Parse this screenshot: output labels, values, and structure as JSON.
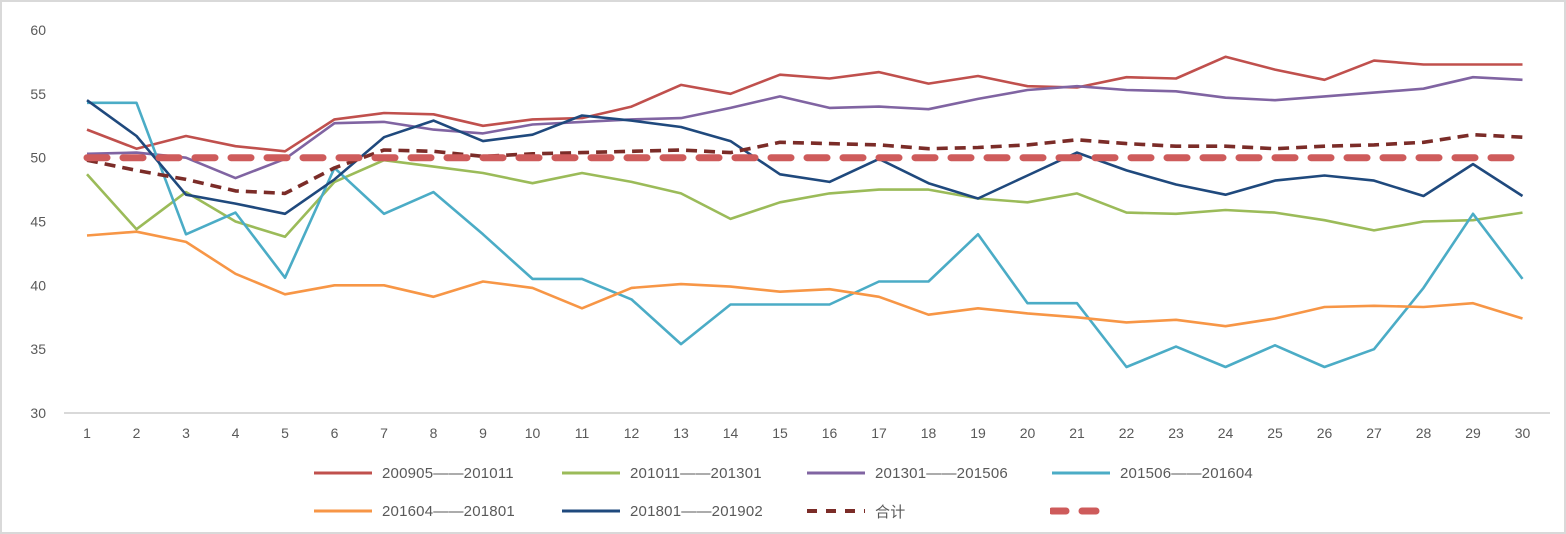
{
  "chart_data": {
    "type": "line",
    "title": "",
    "xlabel": "",
    "ylabel": "",
    "ylim": [
      30,
      60
    ],
    "yticks": [
      60,
      55,
      50,
      45,
      40,
      35,
      30
    ],
    "x": [
      1,
      2,
      3,
      4,
      5,
      6,
      7,
      8,
      9,
      10,
      11,
      12,
      13,
      14,
      15,
      16,
      17,
      18,
      19,
      20,
      21,
      22,
      23,
      24,
      25,
      26,
      27,
      28,
      29,
      30
    ],
    "grid": false,
    "legend_position": "bottom",
    "series": [
      {
        "name": "200905——201011",
        "color": "#C0504D",
        "line": "solid",
        "values": [
          52.2,
          50.7,
          51.7,
          50.9,
          50.5,
          53.0,
          53.5,
          53.4,
          52.5,
          53.0,
          53.1,
          54.0,
          55.7,
          55.0,
          56.5,
          56.2,
          56.7,
          55.8,
          56.4,
          55.6,
          55.5,
          56.3,
          56.2,
          57.9,
          56.9,
          56.1,
          57.6,
          57.3,
          57.3,
          57.3
        ]
      },
      {
        "name": "201011——201301",
        "color": "#9BBB59",
        "line": "solid",
        "values": [
          48.7,
          44.4,
          47.3,
          45.0,
          43.8,
          48.1,
          49.8,
          49.3,
          48.8,
          48.0,
          48.8,
          48.1,
          47.2,
          45.2,
          46.5,
          47.2,
          47.5,
          47.5,
          46.8,
          46.5,
          47.2,
          45.7,
          45.6,
          45.9,
          45.7,
          45.1,
          44.3,
          45.0,
          45.1,
          45.7
        ]
      },
      {
        "name": "201301——201506",
        "color": "#8064A2",
        "line": "solid",
        "values": [
          50.3,
          50.4,
          50.0,
          48.4,
          49.9,
          52.7,
          52.8,
          52.2,
          51.9,
          52.6,
          52.8,
          53.0,
          53.1,
          53.9,
          54.8,
          53.9,
          54.0,
          53.8,
          54.6,
          55.3,
          55.6,
          55.3,
          55.2,
          54.7,
          54.5,
          54.8,
          55.1,
          55.4,
          56.3,
          56.1
        ]
      },
      {
        "name": "201506——201604",
        "color": "#4BACC6",
        "line": "solid",
        "values": [
          54.3,
          54.3,
          44.0,
          45.7,
          40.6,
          49.2,
          45.6,
          47.3,
          44.0,
          40.5,
          40.5,
          38.9,
          35.4,
          38.5,
          38.5,
          38.5,
          40.3,
          40.3,
          44.0,
          38.6,
          38.6,
          33.6,
          35.2,
          33.6,
          35.3,
          33.6,
          35.0,
          39.8,
          45.6,
          40.5
        ]
      },
      {
        "name": "201604——201801",
        "color": "#F79646",
        "line": "solid",
        "values": [
          43.9,
          44.2,
          43.4,
          40.9,
          39.3,
          40.0,
          40.0,
          39.1,
          40.3,
          39.8,
          38.2,
          39.8,
          40.1,
          39.9,
          39.5,
          39.7,
          39.1,
          37.7,
          38.2,
          37.8,
          37.5,
          37.1,
          37.3,
          36.8,
          37.4,
          38.3,
          38.4,
          38.3,
          38.6,
          37.4
        ]
      },
      {
        "name": "201801——201902",
        "color": "#1F497D",
        "line": "solid",
        "values": [
          54.5,
          51.7,
          47.1,
          46.4,
          45.6,
          48.3,
          51.6,
          52.9,
          51.3,
          51.8,
          53.3,
          52.9,
          52.4,
          51.3,
          48.7,
          48.1,
          49.9,
          48.0,
          46.8,
          48.6,
          50.4,
          49.0,
          47.9,
          47.1,
          48.2,
          48.6,
          48.2,
          47.0,
          49.5,
          47.0
        ]
      },
      {
        "name": "合计",
        "color": "#7B2C28",
        "line": "dashed",
        "values": [
          49.8,
          49.0,
          48.3,
          47.4,
          47.2,
          49.2,
          50.6,
          50.5,
          50.1,
          50.3,
          50.4,
          50.5,
          50.6,
          50.4,
          51.2,
          51.1,
          51.0,
          50.7,
          50.8,
          51.0,
          51.4,
          51.1,
          50.9,
          50.9,
          50.7,
          50.9,
          51.0,
          51.2,
          51.8,
          51.6
        ]
      },
      {
        "name": "",
        "color": "#CE5B5B",
        "line": "thick-dashed",
        "values": [
          50,
          50,
          50,
          50,
          50,
          50,
          50,
          50,
          50,
          50,
          50,
          50,
          50,
          50,
          50,
          50,
          50,
          50,
          50,
          50,
          50,
          50,
          50,
          50,
          50,
          50,
          50,
          50,
          50,
          50
        ]
      }
    ]
  }
}
